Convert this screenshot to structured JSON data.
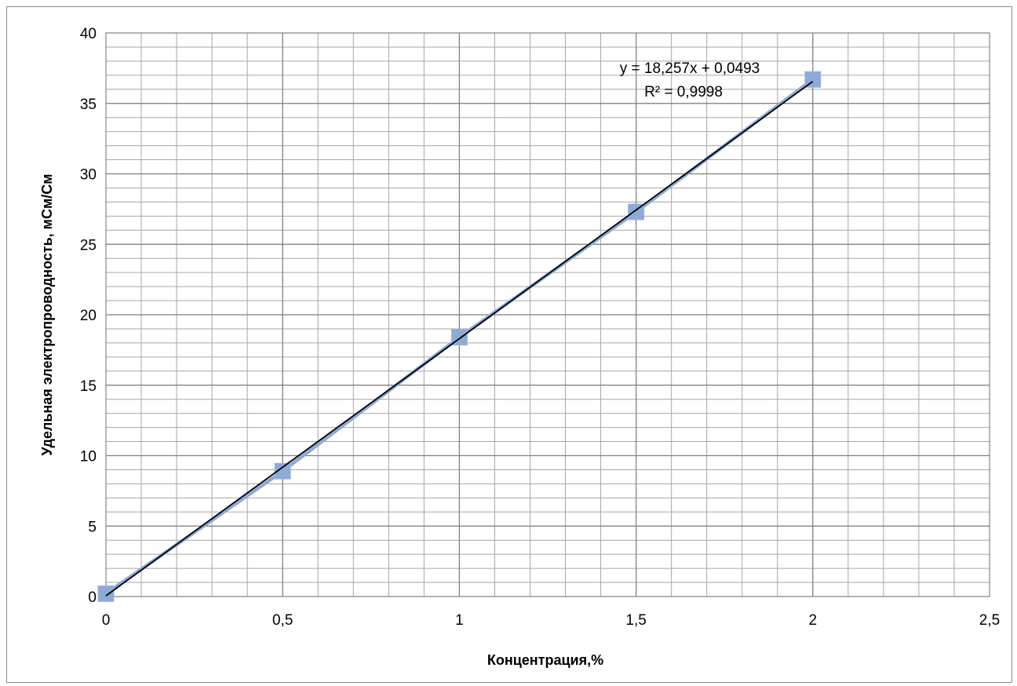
{
  "chart_data": {
    "type": "scatter",
    "title": "",
    "xlabel": "Концентрация,%",
    "ylabel": "Удельная электропроводность, мСм/См",
    "xlim": [
      0,
      2.5
    ],
    "ylim": [
      0,
      40
    ],
    "x_major_ticks": [
      0,
      0.5,
      1,
      1.5,
      2,
      2.5
    ],
    "x_tick_labels": [
      "0",
      "0,5",
      "1",
      "1,5",
      "2",
      "2,5"
    ],
    "x_minor_step": 0.1,
    "y_major_ticks": [
      0,
      5,
      10,
      15,
      20,
      25,
      30,
      35,
      40
    ],
    "y_tick_labels": [
      "0",
      "5",
      "10",
      "15",
      "20",
      "25",
      "30",
      "35",
      "40"
    ],
    "y_minor_step": 1,
    "grid": true,
    "legend": "none",
    "series": [
      {
        "x": [
          0,
          0.5,
          1,
          1.5,
          2
        ],
        "y": [
          0.2,
          8.9,
          18.4,
          27.3,
          36.7
        ],
        "color": "#8eaad5",
        "marker": "square",
        "connected": true
      }
    ],
    "trendline": {
      "type": "linear",
      "slope": 18.257,
      "intercept": 0.0493,
      "x_range": [
        0,
        2
      ],
      "color": "#000000",
      "equation_text": "y = 18,257x + 0,0493",
      "r2_text": "R² = 0,9998"
    }
  }
}
